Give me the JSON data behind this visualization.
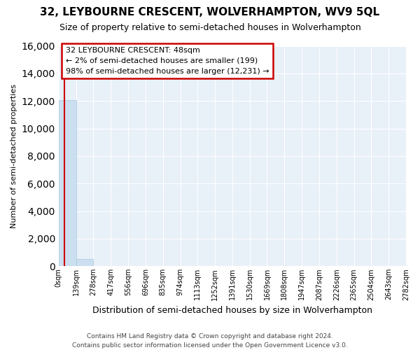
{
  "title1": "32, LEYBOURNE CRESCENT, WOLVERHAMPTON, WV9 5QL",
  "title2": "Size of property relative to semi-detached houses in Wolverhampton",
  "xlabel": "Distribution of semi-detached houses by size in Wolverhampton",
  "ylabel": "Number of semi-detached properties",
  "annotation_title": "32 LEYBOURNE CRESCENT: 48sqm",
  "annotation_line1": "← 2% of semi-detached houses are smaller (199)",
  "annotation_line2": "98% of semi-detached houses are larger (12,231) →",
  "footer1": "Contains HM Land Registry data © Crown copyright and database right 2024.",
  "footer2": "Contains public sector information licensed under the Open Government Licence v3.0.",
  "property_size_sqm": 48,
  "bar_edges": [
    0,
    139,
    278,
    417,
    556,
    696,
    835,
    974,
    1113,
    1252,
    1391,
    1530,
    1669,
    1808,
    1947,
    2087,
    2226,
    2365,
    2504,
    2643,
    2782
  ],
  "bar_heights": [
    12050,
    500,
    5,
    2,
    1,
    1,
    0,
    0,
    0,
    0,
    0,
    0,
    0,
    0,
    0,
    0,
    0,
    0,
    0,
    0
  ],
  "bar_color": "#ccdff0",
  "bar_edge_color": "#aac8e0",
  "annotation_box_color": "#cc0000",
  "property_line_color": "#cc0000",
  "background_color": "#e8f0f8",
  "grid_color": "#ffffff",
  "fig_bg_color": "#ffffff",
  "ylim": [
    0,
    16000
  ],
  "yticks": [
    0,
    2000,
    4000,
    6000,
    8000,
    10000,
    12000,
    14000,
    16000
  ],
  "title1_fontsize": 11,
  "title2_fontsize": 9,
  "ylabel_fontsize": 8,
  "xlabel_fontsize": 9,
  "tick_fontsize": 7,
  "footer_fontsize": 6.5,
  "annotation_fontsize": 8
}
